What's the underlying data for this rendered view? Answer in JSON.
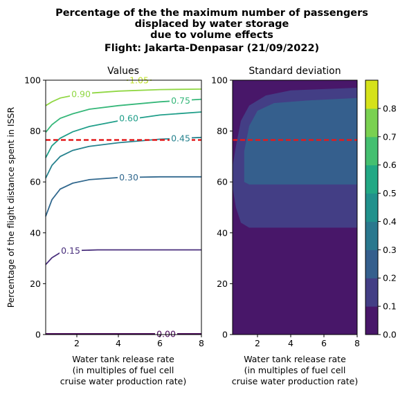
{
  "figure": {
    "title_lines": [
      "Percentage of the the maximum number of passengers",
      "displaced by water storage",
      "due to volume effects",
      "Flight: Jakarta-Denpasar (21/09/2022)"
    ]
  },
  "chart_data": [
    {
      "type": "contour",
      "title": "Values",
      "xlabel_lines": [
        "Water tank release rate",
        "(in multiples of fuel cell",
        "cruise water production rate)"
      ],
      "ylabel": "Percentage of the flight distance spent in ISSR",
      "xlim": [
        0.5,
        8
      ],
      "ylim": [
        0,
        100
      ],
      "xticks": [
        "2",
        "4",
        "6",
        "8"
      ],
      "yticks": [
        "0",
        "20",
        "40",
        "60",
        "80",
        "100"
      ],
      "reference_line": {
        "y": 76.5,
        "style": "red dashed",
        "color": "#e31a1c"
      },
      "contour_lines": [
        {
          "level": "0.00",
          "color": "#440154",
          "points": [
            [
              0.5,
              0.3
            ],
            [
              8,
              0.3
            ]
          ]
        },
        {
          "level": "0.15",
          "color": "#472d7b",
          "points": [
            [
              0.5,
              27.5
            ],
            [
              0.8,
              30.2
            ],
            [
              1.2,
              32.2
            ],
            [
              1.8,
              33.0
            ],
            [
              3,
              33.3
            ],
            [
              5,
              33.3
            ],
            [
              8,
              33.3
            ]
          ]
        },
        {
          "level": "0.30",
          "color": "#31688e",
          "points": [
            [
              0.5,
              46.5
            ],
            [
              0.8,
              53
            ],
            [
              1.2,
              57.2
            ],
            [
              1.8,
              59.5
            ],
            [
              2.6,
              60.9
            ],
            [
              4,
              61.7
            ],
            [
              6,
              62.0
            ],
            [
              8,
              62.0
            ]
          ]
        },
        {
          "level": "0.45",
          "color": "#26828e",
          "points": [
            [
              0.5,
              61.5
            ],
            [
              0.8,
              66.5
            ],
            [
              1.2,
              70.0
            ],
            [
              1.8,
              72.4
            ],
            [
              2.6,
              74.0
            ],
            [
              4,
              75.4
            ],
            [
              6,
              76.8
            ],
            [
              8,
              77.5
            ]
          ]
        },
        {
          "level": "0.60",
          "color": "#1f9e89",
          "points": [
            [
              0.5,
              69.5
            ],
            [
              0.8,
              74.2
            ],
            [
              1.2,
              77.2
            ],
            [
              1.8,
              79.7
            ],
            [
              2.6,
              81.8
            ],
            [
              4,
              84.0
            ],
            [
              6,
              86.3
            ],
            [
              8,
              87.5
            ]
          ]
        },
        {
          "level": "0.75",
          "color": "#35b779",
          "points": [
            [
              0.5,
              79.5
            ],
            [
              0.8,
              82.5
            ],
            [
              1.2,
              85.0
            ],
            [
              1.8,
              86.8
            ],
            [
              2.6,
              88.6
            ],
            [
              4,
              90.0
            ],
            [
              6,
              91.5
            ],
            [
              8,
              92.5
            ]
          ]
        },
        {
          "level": "0.90",
          "color": "#90d743",
          "points": [
            [
              0.5,
              90.0
            ],
            [
              0.8,
              91.5
            ],
            [
              1.2,
              93.0
            ],
            [
              1.8,
              94.0
            ],
            [
              2.6,
              94.9
            ],
            [
              4,
              95.7
            ],
            [
              6,
              96.3
            ],
            [
              8,
              96.5
            ]
          ]
        },
        {
          "level": "1.05",
          "color": "#bddf26",
          "points": [
            [
              4.4,
              100.0
            ],
            [
              5.6,
              100.0
            ]
          ]
        }
      ],
      "contour_labels": [
        {
          "text": "0.00",
          "x": 6.3,
          "y": 0.3,
          "color": "#440154"
        },
        {
          "text": "0.15",
          "x": 1.7,
          "y": 33.0,
          "color": "#472d7b"
        },
        {
          "text": "0.30",
          "x": 4.5,
          "y": 61.8,
          "color": "#31688e"
        },
        {
          "text": "0.45",
          "x": 7.0,
          "y": 77.2,
          "color": "#26828e"
        },
        {
          "text": "0.60",
          "x": 4.5,
          "y": 85.0,
          "color": "#1f9e89"
        },
        {
          "text": "0.75",
          "x": 7.0,
          "y": 92.0,
          "color": "#35b779"
        },
        {
          "text": "0.90",
          "x": 2.2,
          "y": 94.5,
          "color": "#90d743"
        },
        {
          "text": "1.05",
          "x": 5.0,
          "y": 100.0,
          "color": "#bddf26"
        }
      ]
    },
    {
      "type": "heatmap",
      "title": "Standard deviation",
      "xlabel_lines": [
        "Water tank release rate",
        "(in multiples of fuel cell",
        "cruise water production rate)"
      ],
      "xlim": [
        0.5,
        8
      ],
      "ylim": [
        0,
        100
      ],
      "xticks": [
        "2",
        "4",
        "6",
        "8"
      ],
      "yticks": [
        "0",
        "20",
        "40",
        "60",
        "80",
        "100"
      ],
      "reference_line": {
        "y": 76.5,
        "style": "red dashed",
        "color": "#e31a1c"
      },
      "filled_regions": [
        {
          "range": "0.0-0.1",
          "color": "#481769",
          "description": "background"
        },
        {
          "range": "0.1-0.2",
          "color": "#433e85",
          "outline": [
            [
              0.5,
              58
            ],
            [
              0.7,
              50
            ],
            [
              1.0,
              44
            ],
            [
              1.5,
              42
            ],
            [
              8,
              42
            ],
            [
              8,
              97
            ],
            [
              4,
              96
            ],
            [
              2.5,
              94
            ],
            [
              1.5,
              90
            ],
            [
              1.0,
              84
            ],
            [
              0.7,
              74
            ],
            [
              0.5,
              66
            ]
          ]
        },
        {
          "range": "0.2-0.3",
          "color": "#355f8d",
          "outline": [
            [
              1.2,
              60
            ],
            [
              1.5,
              59
            ],
            [
              8,
              59
            ],
            [
              8,
              93
            ],
            [
              5,
              92
            ],
            [
              3,
              91
            ],
            [
              2,
              88
            ],
            [
              1.5,
              82
            ],
            [
              1.2,
              72
            ]
          ]
        }
      ],
      "colorbar": {
        "ticks": [
          "0.0",
          "0.1",
          "0.2",
          "0.3",
          "0.4",
          "0.5",
          "0.6",
          "0.7",
          "0.8"
        ],
        "bands": [
          {
            "from": 0.0,
            "to": 0.1,
            "color": "#481769"
          },
          {
            "from": 0.1,
            "to": 0.2,
            "color": "#433e85"
          },
          {
            "from": 0.2,
            "to": 0.3,
            "color": "#355f8d"
          },
          {
            "from": 0.3,
            "to": 0.4,
            "color": "#2a788e"
          },
          {
            "from": 0.4,
            "to": 0.5,
            "color": "#21918c"
          },
          {
            "from": 0.5,
            "to": 0.6,
            "color": "#22a884"
          },
          {
            "from": 0.6,
            "to": 0.7,
            "color": "#44bf70"
          },
          {
            "from": 0.7,
            "to": 0.8,
            "color": "#7ad151"
          },
          {
            "from": 0.8,
            "to": 0.9,
            "color": "#d5e21a"
          }
        ]
      }
    }
  ]
}
